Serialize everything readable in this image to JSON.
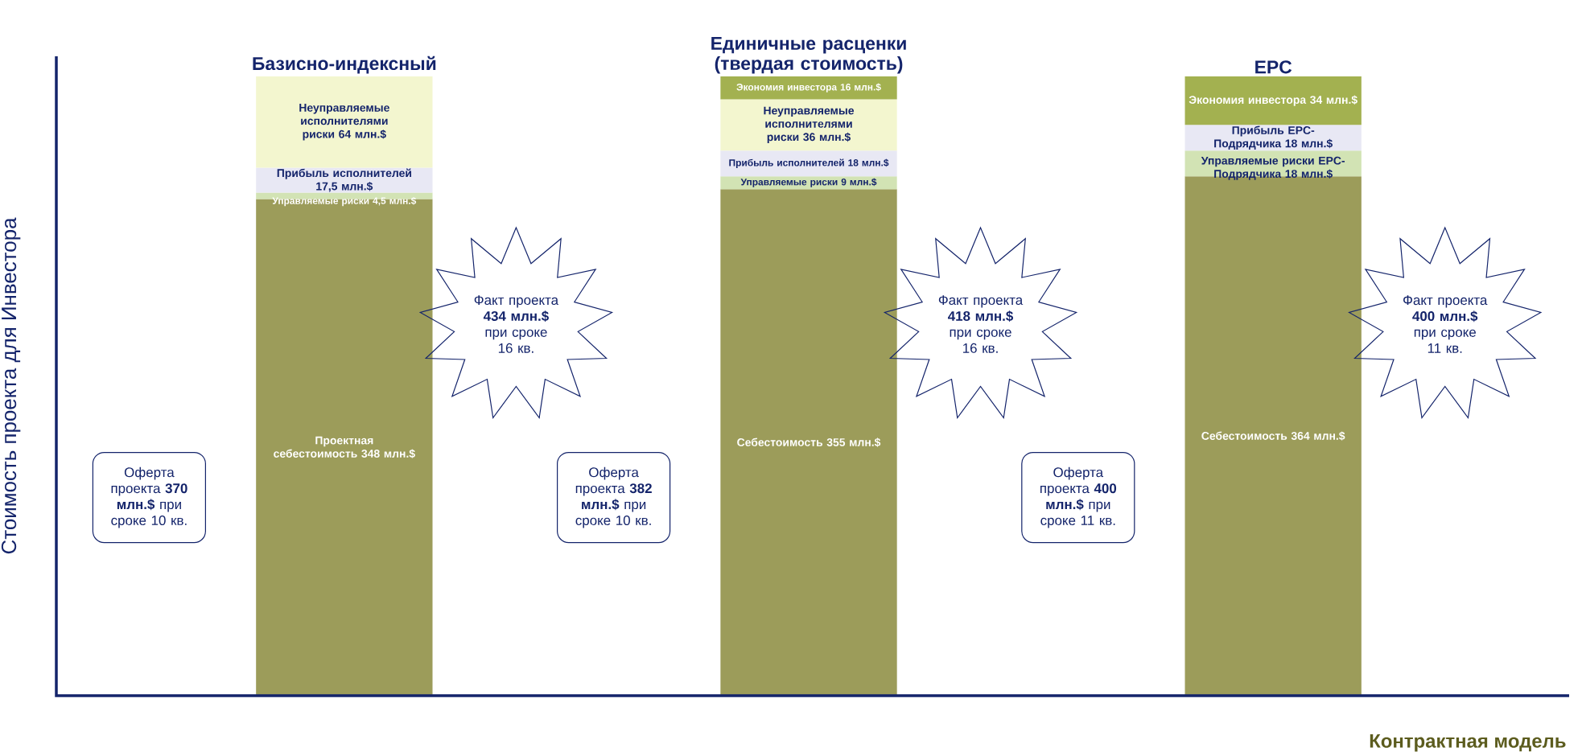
{
  "chart_data": {
    "type": "bar",
    "stacked": true,
    "categories": [
      "Базисно-индексный",
      "Единичные расценки (твердая стоимость)",
      "EPC"
    ],
    "xlabel": "Контрактная модель",
    "ylabel": "Стоимость проекта для Инвестора",
    "series": [
      {
        "color": "#9c9c5a",
        "values": [
          348,
          355,
          364
        ],
        "value_labels": [
          "Проектная себестоимость 348 млн.$",
          "Себестоимость 355 млн.$",
          "Себестоимость 364 млн.$"
        ]
      },
      {
        "color": "#d2e3b4",
        "values": [
          4.5,
          9,
          18
        ],
        "value_labels": [
          "Управляемые риски 4,5 млн.$",
          "Управляемые риски 9 млн.$",
          "Управляемые риски EPC-Подрядчика 18 млн.$"
        ]
      },
      {
        "color": "#e8e8f4",
        "values": [
          17.5,
          18,
          18
        ],
        "value_labels": [
          "Прибыль исполнителей 17,5 млн.$",
          "Прибыль исполнителей 18 млн.$",
          "Прибыль EPC-Подрядчика 18 млн.$"
        ]
      },
      {
        "color": "#f3f6cf",
        "values": [
          64,
          36,
          null
        ],
        "value_labels": [
          "Неуправляемые исполнителями риски 64 млн.$",
          "Неуправляемые исполнителями риски 36 млн.$",
          null
        ]
      },
      {
        "color": "#a3b150",
        "values": [
          null,
          16,
          34
        ],
        "value_labels": [
          null,
          "Экономия инвестора 16 млн.$",
          "Экономия инвестора 34 млн.$"
        ]
      }
    ],
    "annotations": [
      "Оферта проекта **370 млн.$** при сроке 10 кв.",
      "Оферта проекта **382 млн.$** при сроке 10 кв.",
      "Оферта проекта **400 млн.$** при сроке 11 кв.",
      "Факт проекта **434 млн.$** при сроке 16 кв.",
      "Факт проекта **418 млн.$** при сроке 16 кв.",
      "Факт проекта **400 млн.$** при сроке 11 кв."
    ]
  }
}
